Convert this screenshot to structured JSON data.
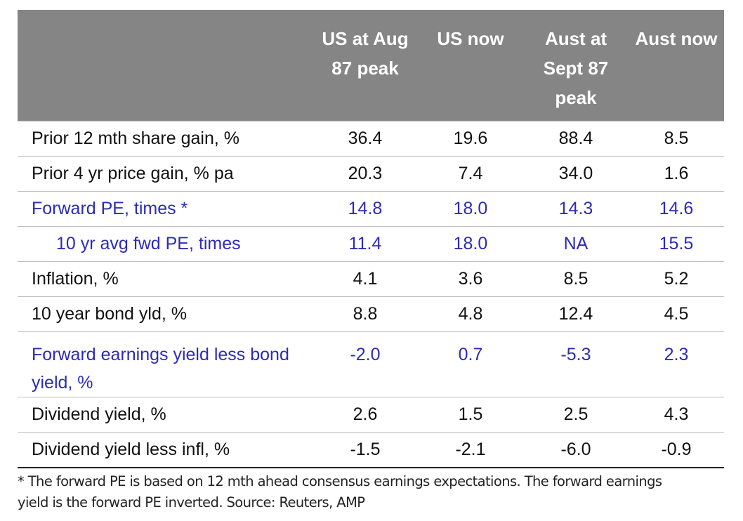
{
  "table": {
    "header": [
      "US at Aug 87 peak",
      "US now",
      "Aust at Sept 87 peak",
      "Aust now"
    ],
    "rows": [
      {
        "label": "Prior 12 mth share gain, %",
        "cells": [
          "36.4",
          "19.6",
          "88.4",
          "8.5"
        ]
      },
      {
        "label": "Prior 4 yr price gain, % pa",
        "cells": [
          "20.3",
          "7.4",
          "34.0",
          "1.6"
        ]
      },
      {
        "label": "Forward PE, times *",
        "cells": [
          "14.8",
          "18.0",
          "14.3",
          "14.6"
        ],
        "color": "#2b2bb8"
      },
      {
        "label": "10 yr avg fwd PE, times",
        "cells": [
          "11.4",
          "18.0",
          "NA",
          "15.5"
        ],
        "color": "#2b2bb8"
      },
      {
        "label": "Inflation, %",
        "cells": [
          "4.1",
          "3.6",
          "8.5",
          "5.2"
        ]
      },
      {
        "label": "10 year bond yld, %",
        "cells": [
          "8.8",
          "4.8",
          "12.4",
          "4.5"
        ]
      },
      {
        "label": "Forward earnings yield less bond yield, %",
        "cells": [
          "-2.0",
          "0.7",
          "-5.3",
          "2.3"
        ],
        "color": "#2b2bb8"
      },
      {
        "label": "Dividend yield, %",
        "cells": [
          "2.6",
          "1.5",
          "2.5",
          "4.3"
        ]
      },
      {
        "label": "Dividend yield less infl, %",
        "cells": [
          "-1.5",
          "-2.1",
          "-6.0",
          "-0.9"
        ]
      }
    ],
    "footnote": "* The forward PE is based on 12 mth ahead consensus earnings expectations. The forward earnings yield is the forward PE inverted. Source: Reuters, AMP"
  }
}
